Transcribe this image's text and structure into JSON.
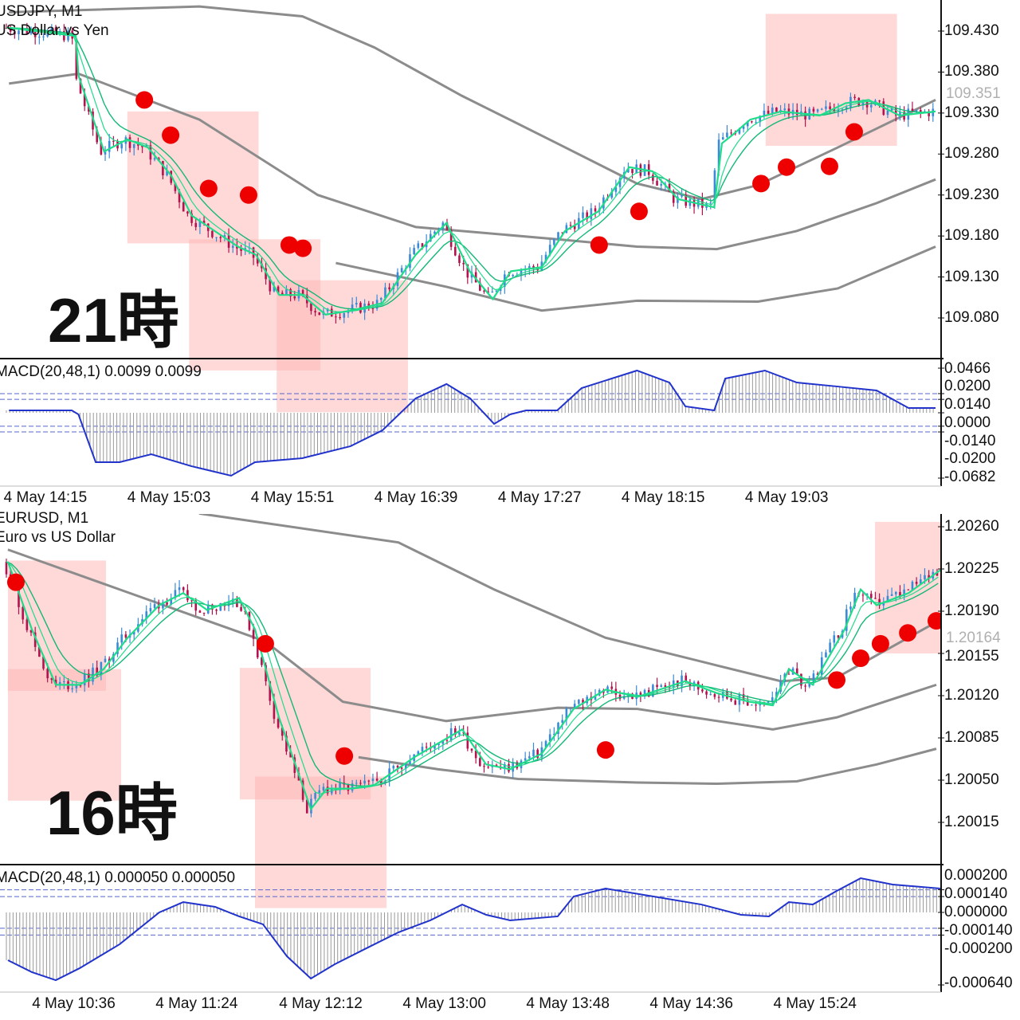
{
  "chart_data": [
    {
      "type": "line",
      "symbol": "USDJPY, M1",
      "description": "US Dollar vs Yen",
      "session_label": "21時",
      "x_unit": "minutes from 13:59",
      "price_ticks": [
        "109.430",
        "109.380",
        "109.330",
        "109.280",
        "109.230",
        "109.180",
        "109.130",
        "109.080"
      ],
      "price_tick_values": [
        109.43,
        109.38,
        109.33,
        109.28,
        109.23,
        109.18,
        109.13,
        109.08
      ],
      "current_price": "109.351",
      "time_labels": [
        "4 May 14:15",
        "4 May 15:03",
        "4 May 15:51",
        "4 May 16:39",
        "4 May 17:27",
        "4 May 18:15",
        "4 May 19:03"
      ],
      "time_label_minutes": [
        16,
        64,
        112,
        160,
        208,
        256,
        304
      ],
      "fast_ma": [
        [
          1,
          109.434
        ],
        [
          27,
          109.424
        ],
        [
          28,
          109.376
        ],
        [
          38,
          109.283
        ],
        [
          47,
          109.298
        ],
        [
          55,
          109.288
        ],
        [
          64,
          109.254
        ],
        [
          72,
          109.205
        ],
        [
          81,
          109.186
        ],
        [
          90,
          109.167
        ],
        [
          97,
          109.157
        ],
        [
          106,
          109.108
        ],
        [
          115,
          109.108
        ],
        [
          124,
          109.084
        ],
        [
          134,
          109.089
        ],
        [
          146,
          109.098
        ],
        [
          159,
          109.157
        ],
        [
          171,
          109.196
        ],
        [
          180,
          109.137
        ],
        [
          189,
          109.103
        ],
        [
          196,
          109.137
        ],
        [
          208,
          109.142
        ],
        [
          217,
          109.186
        ],
        [
          230,
          109.21
        ],
        [
          242,
          109.264
        ],
        [
          251,
          109.259
        ],
        [
          261,
          109.225
        ],
        [
          275,
          109.215
        ],
        [
          278,
          109.293
        ],
        [
          282,
          109.303
        ],
        [
          289,
          109.322
        ],
        [
          301,
          109.332
        ],
        [
          316,
          109.327
        ],
        [
          326,
          109.342
        ],
        [
          335,
          109.346
        ],
        [
          347,
          109.327
        ],
        [
          361,
          109.332
        ]
      ],
      "bands": [
        [
          [
            1,
            109.453
          ],
          [
            75,
            109.46
          ],
          [
            115,
            109.448
          ],
          [
            143,
            109.41
          ],
          [
            177,
            109.351
          ],
          [
            214,
            109.293
          ],
          [
            245,
            109.244
          ],
          [
            270,
            109.225
          ],
          [
            292,
            109.242
          ],
          [
            323,
            109.288
          ],
          [
            361,
            109.346
          ]
        ],
        [
          [
            1,
            109.366
          ],
          [
            28,
            109.378
          ],
          [
            75,
            109.322
          ],
          [
            121,
            109.23
          ],
          [
            159,
            109.191
          ],
          [
            214,
            109.176
          ],
          [
            245,
            109.167
          ],
          [
            276,
            109.164
          ],
          [
            307,
            109.186
          ],
          [
            338,
            109.22
          ],
          [
            361,
            109.249
          ]
        ],
        [
          [
            128,
            109.147
          ],
          [
            171,
            109.118
          ],
          [
            208,
            109.089
          ],
          [
            245,
            109.101
          ],
          [
            292,
            109.1
          ],
          [
            323,
            109.116
          ],
          [
            361,
            109.167
          ]
        ]
      ],
      "signal_dots": [
        [
          53.6,
          109.346
        ],
        [
          63.8,
          109.303
        ],
        [
          78.6,
          109.238
        ],
        [
          94.1,
          109.23
        ],
        [
          109.9,
          109.169
        ],
        [
          115.2,
          109.165
        ],
        [
          230.3,
          109.169
        ],
        [
          245.8,
          109.21
        ],
        [
          293.2,
          109.244
        ],
        [
          303.1,
          109.264
        ],
        [
          319.8,
          109.265
        ],
        [
          329.4,
          109.307
        ]
      ],
      "zones": [
        [
          47,
          98,
          109.332,
          109.171
        ],
        [
          71,
          122,
          109.176,
          109.016
        ],
        [
          105,
          156,
          109.126,
          108.965
        ],
        [
          295,
          346,
          109.451,
          109.29
        ]
      ],
      "macd": {
        "label": "MACD(20,48,1) 0.0099 0.0099",
        "ticks": [
          "0.0466",
          "0.0200",
          "0.0140",
          "0.0000",
          "-0.0140",
          "-0.0200",
          "-0.0682"
        ],
        "tick_values": [
          0.0466,
          0.02,
          0.014,
          0,
          -0.014,
          -0.02,
          -0.0682
        ],
        "levels": [
          0.02,
          0.014,
          -0.014,
          -0.02
        ],
        "line": [
          [
            1,
            0.0025
          ],
          [
            25.4,
            0.0025
          ],
          [
            28,
            -0.0017
          ],
          [
            34.7,
            -0.0516
          ],
          [
            44,
            -0.0516
          ],
          [
            56.3,
            -0.0433
          ],
          [
            71.8,
            -0.0557
          ],
          [
            87.3,
            -0.0657
          ],
          [
            96.6,
            -0.0516
          ],
          [
            115,
            -0.0474
          ],
          [
            133.7,
            -0.0349
          ],
          [
            146.1,
            -0.0183
          ],
          [
            159,
            0.015
          ],
          [
            171,
            0.03
          ],
          [
            180.2,
            0.015
          ],
          [
            189.5,
            -0.0116
          ],
          [
            195.7,
            -0.0017
          ],
          [
            201.9,
            0.0025
          ],
          [
            214,
            0.0025
          ],
          [
            223.5,
            0.0258
          ],
          [
            245,
            0.0441
          ],
          [
            257.6,
            0.0316
          ],
          [
            263.8,
            0.0067
          ],
          [
            275,
            0.0025
          ],
          [
            279.3,
            0.0358
          ],
          [
            294.7,
            0.0441
          ],
          [
            307.1,
            0.0316
          ],
          [
            323,
            0.0274
          ],
          [
            338.1,
            0.0233
          ],
          [
            350.5,
            0.005
          ],
          [
            361,
            0.005
          ]
        ]
      }
    },
    {
      "type": "line",
      "symbol": "EURUSD, M1",
      "description": "Euro vs US Dollar",
      "session_label": "16時",
      "x_unit": "minutes from 10:09",
      "price_ticks": [
        "1.20260",
        "1.20225",
        "1.20190",
        "1.20155",
        "1.20120",
        "1.20085",
        "1.20050",
        "1.20015"
      ],
      "price_tick_values": [
        1.2026,
        1.20225,
        1.2019,
        1.20155,
        1.2012,
        1.20085,
        1.2005,
        1.20015
      ],
      "current_price": "1.20164",
      "time_labels": [
        "4 May 10:36",
        "4 May 11:24",
        "4 May 12:12",
        "4 May 13:00",
        "4 May 13:48",
        "4 May 14:36",
        "4 May 15:24"
      ],
      "time_label_minutes": [
        27,
        75,
        123,
        171,
        219,
        267,
        315
      ],
      "fast_ma": [
        [
          0.6,
          1.20231
        ],
        [
          9.9,
          1.20175
        ],
        [
          19.2,
          1.20129
        ],
        [
          28.5,
          1.20129
        ],
        [
          37.8,
          1.20142
        ],
        [
          47.1,
          1.20168
        ],
        [
          59.4,
          1.20195
        ],
        [
          68.7,
          1.20205
        ],
        [
          78,
          1.20191
        ],
        [
          90.4,
          1.20201
        ],
        [
          96.6,
          1.20175
        ],
        [
          105.9,
          1.20102
        ],
        [
          118.3,
          1.20026
        ],
        [
          124.5,
          1.20043
        ],
        [
          133.7,
          1.20043
        ],
        [
          143,
          1.20046
        ],
        [
          158.5,
          1.20069
        ],
        [
          177.1,
          1.20092
        ],
        [
          186.4,
          1.20063
        ],
        [
          195.7,
          1.20059
        ],
        [
          208,
          1.20072
        ],
        [
          220.4,
          1.20109
        ],
        [
          232.8,
          1.20125
        ],
        [
          245.2,
          1.20119
        ],
        [
          263.8,
          1.20132
        ],
        [
          276.2,
          1.20122
        ],
        [
          288.5,
          1.20115
        ],
        [
          297.8,
          1.20112
        ],
        [
          304,
          1.20142
        ],
        [
          313.3,
          1.20129
        ],
        [
          325.7,
          1.20175
        ],
        [
          331.9,
          1.20208
        ],
        [
          338.1,
          1.20195
        ],
        [
          350.5,
          1.20205
        ],
        [
          362.8,
          1.20224
        ]
      ],
      "bands": [
        [
          [
            74.9,
            1.20271
          ],
          [
            152.3,
            1.20247
          ],
          [
            189.5,
            1.20208
          ],
          [
            232.8,
            1.20168
          ],
          [
            276.2,
            1.20145
          ],
          [
            300.9,
            1.20132
          ],
          [
            322.6,
            1.20135
          ],
          [
            361.3,
            1.20181
          ]
        ],
        [
          [
            0.6,
            1.20241
          ],
          [
            44,
            1.20208
          ],
          [
            100.6,
            1.20165
          ],
          [
            130.7,
            1.20115
          ],
          [
            170.9,
            1.20099
          ],
          [
            214.2,
            1.2011
          ],
          [
            245.2,
            1.20109
          ],
          [
            276.2,
            1.20099
          ],
          [
            297.8,
            1.20092
          ],
          [
            322.6,
            1.20102
          ],
          [
            361.3,
            1.20129
          ]
        ],
        [
          [
            136.8,
            1.20069
          ],
          [
            167.8,
            1.20059
          ],
          [
            198.8,
            1.20051
          ],
          [
            245.2,
            1.20048
          ],
          [
            276.2,
            1.20047
          ],
          [
            307.1,
            1.20049
          ],
          [
            338.1,
            1.20063
          ],
          [
            361.3,
            1.20076
          ]
        ]
      ],
      "signal_dots": [
        [
          3.7,
          1.20214
        ],
        [
          100.6,
          1.20163
        ],
        [
          131.3,
          1.2007
        ],
        [
          232.8,
          1.20075
        ],
        [
          322.6,
          1.20133
        ],
        [
          331.9,
          1.20151
        ],
        [
          339.6,
          1.20163
        ],
        [
          350.2,
          1.20172
        ],
        [
          361.3,
          1.20182
        ]
      ],
      "zones": [
        [
          0.6,
          38.7,
          1.20232,
          1.20124
        ],
        [
          0.6,
          44.6,
          1.20142,
          1.20033
        ],
        [
          90.7,
          141.5,
          1.20143,
          1.20034
        ],
        [
          96.6,
          147.7,
          1.20053,
          1.19944
        ],
        [
          337.5,
          388.2,
          1.20264,
          1.20155
        ]
      ],
      "macd": {
        "label": "MACD(20,48,1) 0.000050 0.000050",
        "ticks": [
          "0.000200",
          "0.000140",
          "0.000000",
          "-0.000140",
          "-0.000200",
          "-0.000640"
        ],
        "tick_values": [
          0.0002,
          0.00014,
          0,
          -0.00014,
          -0.0002,
          -0.00064
        ],
        "levels": [
          0.0002,
          0.00014,
          -0.00014,
          -0.0002
        ],
        "line": [
          [
            0.6,
            -0.000422
          ],
          [
            9.9,
            -0.000527
          ],
          [
            19.2,
            -0.000598
          ],
          [
            28.5,
            -0.000492
          ],
          [
            44,
            -0.000281
          ],
          [
            59.4,
            0
          ],
          [
            68.7,
            9.1e-05
          ],
          [
            81.1,
            4.9e-05
          ],
          [
            90.4,
            -3.5e-05
          ],
          [
            99.7,
            -0.000105
          ],
          [
            109,
            -0.000387
          ],
          [
            118.3,
            -0.000584
          ],
          [
            127.6,
            -0.000457
          ],
          [
            139.9,
            -0.000316
          ],
          [
            152.3,
            -0.000176
          ],
          [
            164.7,
            -7e-05
          ],
          [
            177.1,
            7e-05
          ],
          [
            186.4,
            -2.1e-05
          ],
          [
            195.7,
            -7e-05
          ],
          [
            214.2,
            -3.5e-05
          ],
          [
            220.4,
            0.000141
          ],
          [
            232.8,
            0.000211
          ],
          [
            251.4,
            0.000141
          ],
          [
            270,
            7e-05
          ],
          [
            285.4,
            -2.1e-05
          ],
          [
            296.3,
            -3.5e-05
          ],
          [
            304,
            9.1e-05
          ],
          [
            313.3,
            7e-05
          ],
          [
            322.6,
            0.00019
          ],
          [
            331.9,
            0.000302
          ],
          [
            344.3,
            0.000246
          ],
          [
            362.8,
            0.000211
          ]
        ]
      }
    }
  ],
  "colors": {
    "bull": "#3b8ad8",
    "bear": "#b3124e",
    "fast_ma": "#1fdc8a",
    "slow_ma": "#13b877",
    "band": "#8c8c8c",
    "zone": "#ffb8b8",
    "dot": "#ee0000",
    "macd": "#2233cc",
    "level": "#5566cc"
  }
}
